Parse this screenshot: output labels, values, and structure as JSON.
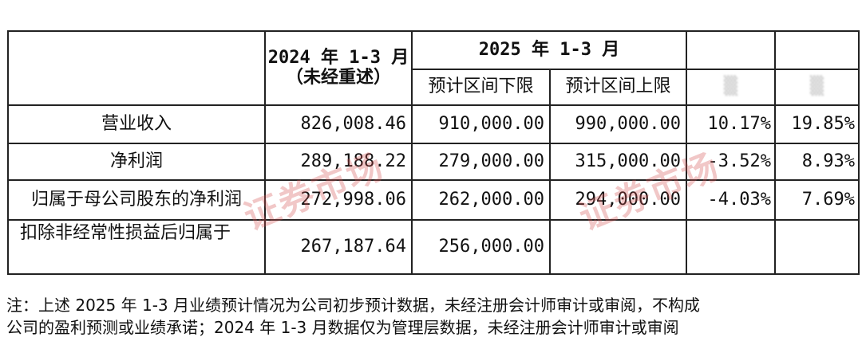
{
  "table": {
    "header": {
      "col_2024": "2024 年 1-3 月",
      "col_2024_note": "（未经重述）",
      "col_2025": "2025 年 1-3 月",
      "sub_lower": "预计区间下限",
      "sub_upper": "预计区间上限",
      "change_col_1": "",
      "change_col_2": ""
    },
    "rows": [
      {
        "label": "营业收入",
        "v2024": "826,008.46",
        "lower": "910,000.00",
        "upper": "990,000.00",
        "chg_lower": "10.17%",
        "chg_upper": "19.85%"
      },
      {
        "label": "净利润",
        "v2024": "289,188.22",
        "lower": "279,000.00",
        "upper": "315,000.00",
        "chg_lower": "-3.52%",
        "chg_upper": "8.93%"
      },
      {
        "label": "归属于母公司股东的净利润",
        "v2024": "272,998.06",
        "lower": "262,000.00",
        "upper": "294,000.00",
        "chg_lower": "-4.03%",
        "chg_upper": "7.69%"
      },
      {
        "label": "扣除非经常性损益后归属于",
        "v2024": "267,187.64",
        "lower": "256,000.00",
        "upper": "",
        "chg_lower": "",
        "chg_upper": ""
      }
    ]
  },
  "note": {
    "line1": "注：上述 2025 年 1-3 月业绩预计情况为公司初步预计数据，未经注册会计师审计或审阅，不构成",
    "line2": "公司的盈利预测或业绩承诺；2024 年 1-3 月数据仅为管理层数据，未经注册会计师审计或审阅"
  },
  "watermark": {
    "text": "证券市场",
    "color": "#d25050"
  }
}
